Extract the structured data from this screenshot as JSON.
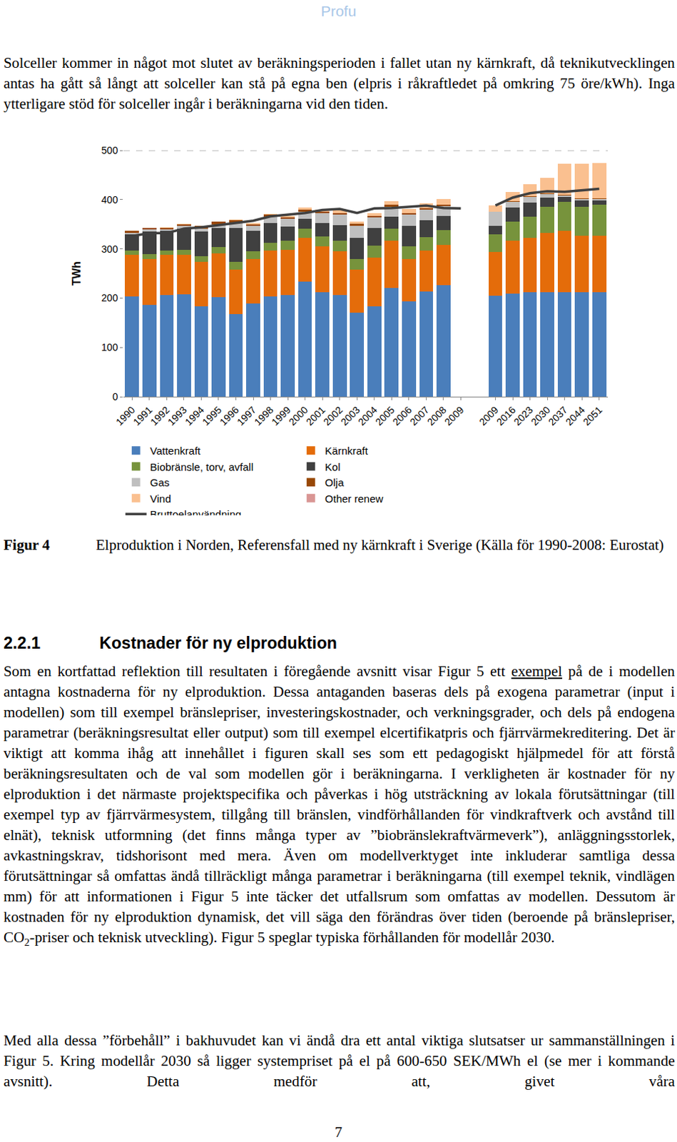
{
  "header": "Profu",
  "intro": "Solceller kommer in något mot slutet av beräkningsperioden i fallet utan ny kärnkraft, då teknikutvecklingen antas ha gått så långt att solceller kan stå på egna ben (elpris i råkraftledet på omkring 75 öre/kWh). Inga ytterligare stöd för solceller ingår i beräkningarna vid den tiden.",
  "chart_data": {
    "type": "bar",
    "stacked": true,
    "y_label": "TWh",
    "ylim": [
      0,
      500
    ],
    "yticks": [
      0,
      100,
      200,
      300,
      400,
      500
    ],
    "grid": false,
    "legend": "bottom",
    "categories": [
      "1990",
      "1991",
      "1992",
      "1993",
      "1994",
      "1995",
      "1996",
      "1997",
      "1998",
      "1999",
      "2000",
      "2001",
      "2002",
      "2003",
      "2004",
      "2005",
      "2006",
      "2007",
      "2008",
      "2009",
      null,
      "2009",
      "2016",
      "2023",
      "2030",
      "2037",
      "2044",
      "2051"
    ],
    "series": [
      {
        "name": "Vattenkraft",
        "color": "#4a7ebb",
        "values": [
          204,
          186,
          206,
          208,
          183,
          202,
          167,
          189,
          204,
          206,
          234,
          212,
          206,
          170,
          184,
          221,
          193,
          214,
          226,
          null,
          null,
          205,
          209,
          212,
          212,
          212,
          212,
          212
        ]
      },
      {
        "name": "Kärnkraft",
        "color": "#e46c0a",
        "values": [
          84,
          94,
          82,
          80,
          90,
          89,
          91,
          90,
          92,
          92,
          88,
          93,
          89,
          88,
          98,
          95,
          86,
          82,
          82,
          null,
          null,
          88,
          107,
          110,
          120,
          124,
          115,
          115
        ]
      },
      {
        "name": "Biobränsle, torv, avfall",
        "color": "#77933c",
        "values": [
          8,
          10,
          9,
          10,
          12,
          13,
          15,
          16,
          17,
          18,
          19,
          20,
          21,
          22,
          24,
          25,
          26,
          28,
          30,
          null,
          null,
          36,
          40,
          44,
          54,
          59,
          59,
          62
        ]
      },
      {
        "name": "Kol",
        "color": "#404040",
        "values": [
          33,
          45,
          39,
          43,
          50,
          38,
          69,
          41,
          40,
          29,
          20,
          27,
          32,
          43,
          36,
          25,
          41,
          34,
          29,
          null,
          null,
          18,
          28,
          28,
          18,
          10,
          12,
          10
        ]
      },
      {
        "name": "Gas",
        "color": "#bfbfbf",
        "values": [
          3,
          4,
          4,
          5,
          6,
          8,
          10,
          10,
          12,
          16,
          15,
          20,
          22,
          24,
          22,
          20,
          24,
          22,
          20,
          null,
          null,
          28,
          12,
          12,
          7,
          4,
          3,
          2
        ]
      },
      {
        "name": "Olja",
        "color": "#984807",
        "values": [
          4,
          4,
          3,
          4,
          5,
          5,
          6,
          4,
          4,
          3,
          3,
          4,
          3,
          4,
          3,
          3,
          3,
          3,
          3,
          null,
          null,
          1,
          1,
          1,
          1,
          1,
          1,
          1
        ]
      },
      {
        "name": "Vind",
        "color": "#fac090",
        "values": [
          0,
          0,
          1,
          1,
          1,
          1,
          1,
          2,
          2,
          3,
          5,
          4,
          5,
          5,
          6,
          8,
          8,
          10,
          11,
          null,
          null,
          12,
          18,
          24,
          32,
          63,
          71,
          72
        ]
      },
      {
        "name": "Other renew",
        "color": "#d99694",
        "values": [
          0,
          0,
          0,
          0,
          0,
          0,
          0,
          0,
          0,
          0,
          0,
          0,
          0,
          0,
          0,
          0,
          0,
          0,
          0,
          null,
          null,
          0,
          0,
          0,
          0,
          0,
          0,
          0
        ]
      },
      {
        "name": "Bruttoelanvändning",
        "type": "line",
        "color": "#404040",
        "values": [
          326,
          332,
          332,
          341,
          344,
          348,
          352,
          357,
          366,
          369,
          373,
          379,
          381,
          373,
          382,
          383,
          385,
          388,
          383,
          382,
          null,
          388,
          404,
          413,
          417,
          416,
          419,
          422
        ]
      }
    ]
  },
  "caption": {
    "label": "Figur 4",
    "text": "Elproduktion i Norden, Referensfall med ny kärnkraft i Sverige (Källa för 1990-2008: Eurostat)"
  },
  "heading": {
    "number": "2.2.1",
    "title": "Kostnader för ny elproduktion"
  },
  "paragraphs": [
    [
      "Som en kortfattad reflektion till resultaten i föregående avsnitt visar Figur 5 ett ",
      {
        "text": "exempel",
        "style": "underline"
      },
      " på de i modellen antagna kostnaderna för ny elproduktion. Dessa antaganden baseras dels på exogena parametrar (input i modellen) som till exempel bränslepriser, investeringskostnader, och verkningsgrader, och dels på endogena parametrar (beräkningsresultat eller output) som till exempel elcertifikatpris och fjärrvärmekreditering. Det är viktigt att komma ihåg att innehållet i figuren skall ses som ett pedagogiskt hjälpmedel för att förstå beräkningsresultaten och de val som modellen gör i beräkningarna. I verkligheten är kostnader för ny elproduktion i det närmaste projektspecifika och påverkas i hög utsträckning av lokala förutsättningar (till exempel typ av fjärrvärmesystem, tillgång till bränslen, vindförhållanden för vindkraftverk och avstånd till elnät), teknisk utformning (det finns många typer av ”biobränslekraftvärmeverk”), anläggningsstorlek, avkastningskrav, tidshorisont med mera. Även om modellverktyget inte inkluderar samtliga dessa förutsättningar så omfattas ändå tillräckligt många parametrar i beräkningarna (till exempel teknik, vindlägen mm) för att informationen i Figur 5 inte täcker det utfallsrum som omfattas av modellen. Dessutom är kostnaden för ny elproduktion dynamisk, det vill säga den förändras över tiden (beroende på bränslepriser, CO",
      {
        "text": "2",
        "style": "subscript"
      },
      "-priser och teknisk utveckling). Figur 5 speglar typiska förhållanden för modellår 2030."
    ],
    [
      "Med alla dessa ”förbehåll” i bakhuvudet kan vi ändå dra ett antal viktiga slutsatser ur sammanställningen i Figur 5. Kring modellår 2030 så ligger systempriset på el på 600-650 SEK/MWh el (se mer i kommande avsnitt). Detta medför att, givet våra"
    ]
  ],
  "page_number": "7"
}
